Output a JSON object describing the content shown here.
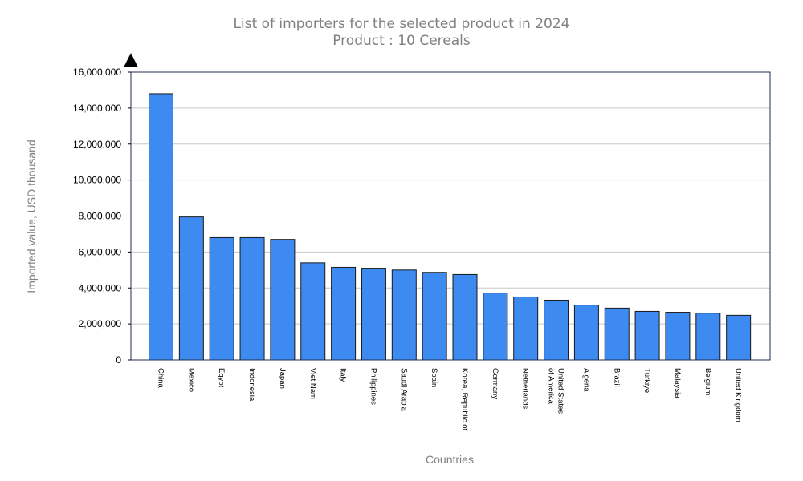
{
  "chart_data": {
    "type": "bar",
    "title": "List of importers for the selected product in 2024",
    "subtitle": "Product : 10 Cereals",
    "xlabel": "Countries",
    "ylabel": "Imported value, USD thousand",
    "ylim": [
      0,
      16000000
    ],
    "yticks": [
      "0",
      "2,000,000",
      "4,000,000",
      "6,000,000",
      "8,000,000",
      "10,000,000",
      "12,000,000",
      "14,000,000",
      "16,000,000"
    ],
    "grid": true,
    "legend": "none",
    "bar_color": "#3d8af0",
    "categories": [
      [
        "China"
      ],
      [
        "Mexico"
      ],
      [
        "Egypt"
      ],
      [
        "Indonesia"
      ],
      [
        "Japan"
      ],
      [
        "Viet Nam"
      ],
      [
        "Italy"
      ],
      [
        "Philippines"
      ],
      [
        "Saudi Arabia"
      ],
      [
        "Spain"
      ],
      [
        "Korea, Republic of"
      ],
      [
        "Germany"
      ],
      [
        "Netherlands"
      ],
      [
        "United States",
        "of America"
      ],
      [
        "Algeria"
      ],
      [
        "Brazil"
      ],
      [
        "Türkiye"
      ],
      [
        "Malaysia"
      ],
      [
        "Belgium"
      ],
      [
        "United Kingdom"
      ]
    ],
    "values": [
      14800000,
      7950000,
      6800000,
      6800000,
      6700000,
      5400000,
      5150000,
      5100000,
      5000000,
      4870000,
      4750000,
      3720000,
      3500000,
      3320000,
      3050000,
      2880000,
      2700000,
      2650000,
      2600000,
      2480000
    ]
  }
}
